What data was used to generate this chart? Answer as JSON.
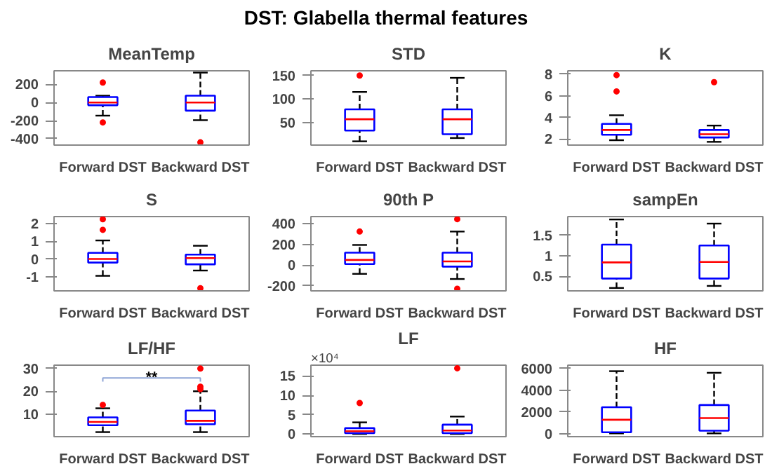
{
  "chart_data": [
    {
      "type": "box",
      "title": "MeanTemp",
      "annotations": [
        "DST: Glabella thermal features"
      ],
      "categories": [
        "Forward DST",
        "Backward DST"
      ],
      "ylim": [
        -470,
        350
      ],
      "yticks": [
        -400,
        -200,
        0,
        200
      ],
      "grid": false,
      "boxes": [
        {
          "low": -145,
          "q1": -30,
          "median": 0,
          "q3": 60,
          "high": 75,
          "outliers": [
            220,
            -220
          ]
        },
        {
          "low": -195,
          "q1": -90,
          "median": 0,
          "q3": 75,
          "high": 330,
          "outliers": [
            -440
          ]
        }
      ]
    },
    {
      "type": "box",
      "title": "STD",
      "categories": [
        "Forward DST",
        "Backward DST"
      ],
      "ylim": [
        2,
        160
      ],
      "yticks": [
        50,
        100,
        150
      ],
      "grid": false,
      "boxes": [
        {
          "low": 10,
          "q1": 33,
          "median": 57,
          "q3": 78,
          "high": 115,
          "outliers": [
            150
          ]
        },
        {
          "low": 17,
          "q1": 25,
          "median": 57,
          "q3": 78,
          "high": 145
        }
      ]
    },
    {
      "type": "box",
      "title": "K",
      "categories": [
        "Forward DST",
        "Backward DST"
      ],
      "ylim": [
        1.45,
        8.3
      ],
      "yticks": [
        2,
        4,
        6,
        8
      ],
      "grid": false,
      "boxes": [
        {
          "low": 1.9,
          "q1": 2.4,
          "median": 2.85,
          "q3": 3.4,
          "high": 4.2,
          "outliers": [
            6.4,
            7.9
          ]
        },
        {
          "low": 1.75,
          "q1": 2.15,
          "median": 2.45,
          "q3": 2.85,
          "high": 3.25,
          "outliers": [
            7.25
          ]
        }
      ]
    },
    {
      "type": "box",
      "title": "S",
      "categories": [
        "Forward DST",
        "Backward DST"
      ],
      "ylim": [
        -1.8,
        2.4
      ],
      "yticks": [
        -1,
        0,
        1,
        2
      ],
      "grid": false,
      "boxes": [
        {
          "low": -0.95,
          "q1": -0.2,
          "median": 0,
          "q3": 0.35,
          "high": 1.05,
          "outliers": [
            1.65,
            2.25
          ]
        },
        {
          "low": -0.65,
          "q1": -0.3,
          "median": 0.05,
          "q3": 0.25,
          "high": 0.75,
          "outliers": [
            -1.65
          ]
        }
      ]
    },
    {
      "type": "box",
      "title": "90th P",
      "categories": [
        "Forward DST",
        "Backward DST"
      ],
      "ylim": [
        -250,
        470
      ],
      "yticks": [
        -200,
        0,
        200,
        400
      ],
      "grid": false,
      "boxes": [
        {
          "low": -85,
          "q1": 10,
          "median": 50,
          "q3": 120,
          "high": 195,
          "outliers": [
            325
          ]
        },
        {
          "low": -135,
          "q1": -15,
          "median": 35,
          "q3": 120,
          "high": 325,
          "outliers": [
            445,
            -230
          ]
        }
      ]
    },
    {
      "type": "box",
      "title": "sampEn",
      "categories": [
        "Forward DST",
        "Backward DST"
      ],
      "ylim": [
        0.15,
        1.95
      ],
      "yticks": [
        0.5,
        1,
        1.5
      ],
      "grid": false,
      "boxes": [
        {
          "low": 0.22,
          "q1": 0.45,
          "median": 0.84,
          "q3": 1.27,
          "high": 1.88
        },
        {
          "low": 0.27,
          "q1": 0.45,
          "median": 0.85,
          "q3": 1.25,
          "high": 1.78
        }
      ]
    },
    {
      "type": "box",
      "title": "LF/HF",
      "annotations": [
        "**"
      ],
      "categories": [
        "Forward DST",
        "Backward DST"
      ],
      "ylim": [
        0,
        31.5
      ],
      "yticks": [
        10,
        20,
        30
      ],
      "grid": false,
      "boxes": [
        {
          "low": 2,
          "q1": 5,
          "median": 6.5,
          "q3": 8.5,
          "high": 12.5,
          "outliers": [
            14
          ]
        },
        {
          "low": 2,
          "q1": 5.5,
          "median": 7,
          "q3": 11.5,
          "high": 20,
          "outliers": [
            21,
            22,
            30
          ]
        }
      ]
    },
    {
      "type": "box",
      "title": "LF",
      "annotations": [
        "×10⁴"
      ],
      "categories": [
        "Forward DST",
        "Backward DST"
      ],
      "ylim": [
        -0.7,
        17.8
      ],
      "yticks": [
        0,
        5,
        10,
        15
      ],
      "grid": false,
      "boxes": [
        {
          "low": 0,
          "q1": 0.2,
          "median": 0.7,
          "q3": 1.5,
          "high": 3,
          "outliers": [
            8
          ]
        },
        {
          "low": 0,
          "q1": 0.2,
          "median": 0.9,
          "q3": 2.4,
          "high": 4.5,
          "outliers": [
            17
          ]
        }
      ]
    },
    {
      "type": "box",
      "title": "HF",
      "categories": [
        "Forward DST",
        "Backward DST"
      ],
      "ylim": [
        -250,
        6300
      ],
      "yticks": [
        0,
        2000,
        4000,
        6000
      ],
      "grid": false,
      "boxes": [
        {
          "low": 50,
          "q1": 150,
          "median": 1300,
          "q3": 2450,
          "high": 5750
        },
        {
          "low": 50,
          "q1": 300,
          "median": 1450,
          "q3": 2650,
          "high": 5600
        }
      ]
    }
  ]
}
